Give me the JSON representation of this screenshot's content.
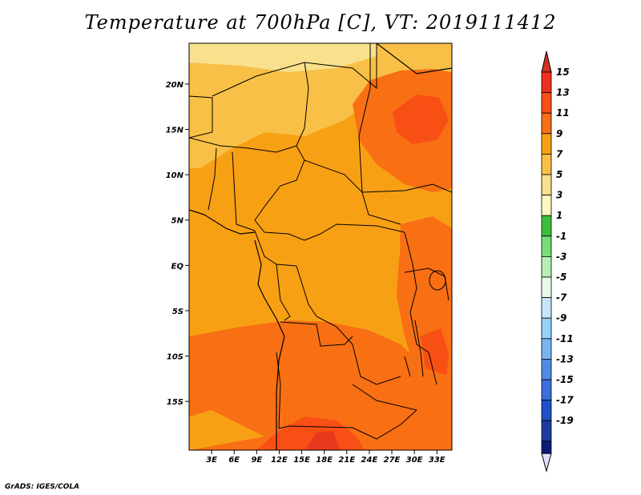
{
  "title": "Temperature at 700hPa [C], VT: 2019111412",
  "credit": "GrADS: IGES/COLA",
  "map": {
    "lat_ticks": [
      {
        "value": 20,
        "label": "20N"
      },
      {
        "value": 15,
        "label": "15N"
      },
      {
        "value": 10,
        "label": "10N"
      },
      {
        "value": 5,
        "label": "5N"
      },
      {
        "value": 0,
        "label": "EQ"
      },
      {
        "value": -5,
        "label": "5S"
      },
      {
        "value": -10,
        "label": "10S"
      },
      {
        "value": -15,
        "label": "15S"
      }
    ],
    "lon_ticks": [
      {
        "value": 3,
        "label": "3E"
      },
      {
        "value": 6,
        "label": "6E"
      },
      {
        "value": 9,
        "label": "9E"
      },
      {
        "value": 12,
        "label": "12E"
      },
      {
        "value": 15,
        "label": "15E"
      },
      {
        "value": 18,
        "label": "18E"
      },
      {
        "value": 21,
        "label": "21E"
      },
      {
        "value": 24,
        "label": "24E"
      },
      {
        "value": 27,
        "label": "27E"
      },
      {
        "value": 30,
        "label": "30E"
      },
      {
        "value": 33,
        "label": "33E"
      }
    ]
  },
  "colorbar": {
    "levels": [
      {
        "label": "15",
        "color": "#f0301e"
      },
      {
        "label": "13",
        "color": "#f84f14"
      },
      {
        "label": "11",
        "color": "#f86f14"
      },
      {
        "label": "9",
        "color": "#f8a014"
      },
      {
        "label": "7",
        "color": "#f8c046"
      },
      {
        "label": "5",
        "color": "#f8e08c"
      },
      {
        "label": "3",
        "color": "#fff8c0"
      },
      {
        "label": "1",
        "color": "#3cbe3c"
      },
      {
        "label": "-1",
        "color": "#78dc78"
      },
      {
        "label": "-3",
        "color": "#b4f0b4"
      },
      {
        "label": "-5",
        "color": "#e6fae6"
      },
      {
        "label": "-7",
        "color": "#c8e6fa"
      },
      {
        "label": "-9",
        "color": "#96d2fa"
      },
      {
        "label": "-11",
        "color": "#78b4f0"
      },
      {
        "label": "-13",
        "color": "#508ce6"
      },
      {
        "label": "-15",
        "color": "#3c6edc"
      },
      {
        "label": "-17",
        "color": "#1e50c8"
      },
      {
        "label": "-19",
        "color": "#1e3ca0"
      }
    ],
    "top_extension_color": "#d2321e",
    "bottom_extension_color": "#e0e0f8",
    "end_segment_color": "#0a1e78"
  }
}
